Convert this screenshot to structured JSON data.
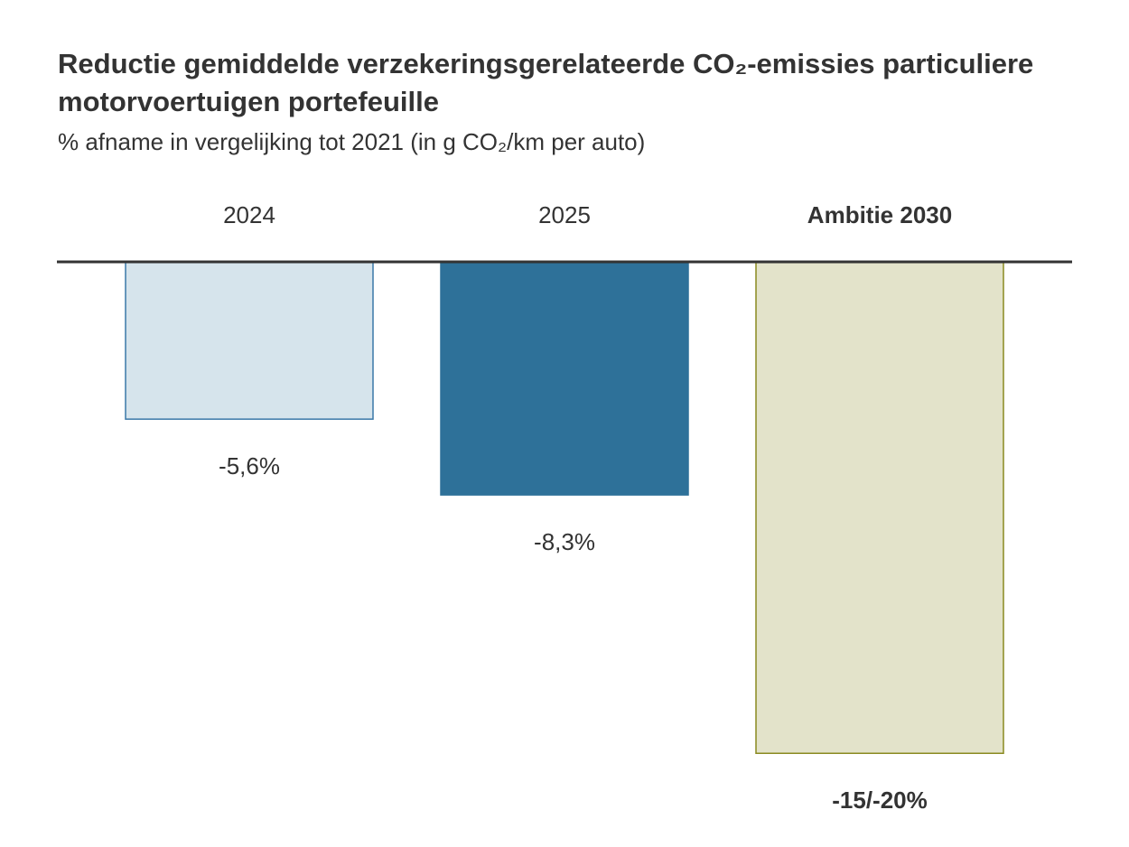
{
  "chart_data": {
    "type": "bar",
    "title": "Reductie gemiddelde verzekeringsgerelateerde CO₂-emissies particuliere motorvoertuigen portefeuille",
    "subtitle": "% afname in vergelijking tot 2021 (in g CO₂/km per auto)",
    "categories": [
      "2024",
      "2025",
      "Ambitie 2030"
    ],
    "values": [
      -5.6,
      -8.3,
      -17.5
    ],
    "value_labels": [
      "-5,6%",
      "-8,3%",
      "-15/-20%"
    ],
    "colors": [
      "#d6e4ec",
      "#2e7199",
      "#e3e3ca"
    ],
    "edge_colors": [
      "#3a78a8",
      "#2e7199",
      "#8a8a20"
    ],
    "emphasis": [
      false,
      false,
      true
    ],
    "ylim": [
      -20,
      0
    ]
  }
}
